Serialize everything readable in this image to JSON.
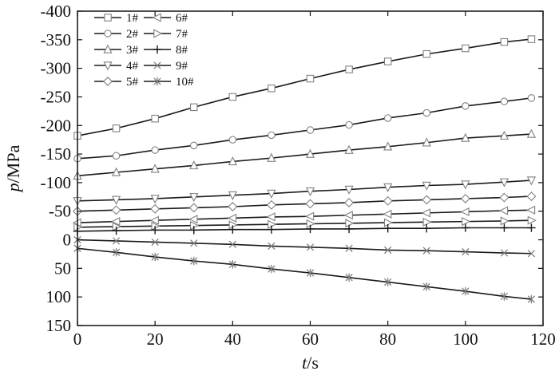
{
  "chart_data": {
    "type": "line",
    "title": "",
    "xlabel": {
      "italic": "t",
      "unit": "/s"
    },
    "ylabel": {
      "italic": "p",
      "unit": "/MPa"
    },
    "xlim": [
      0,
      120
    ],
    "ylim": [
      150,
      -400
    ],
    "y_axis_inverted": true,
    "x_ticks": [
      0,
      20,
      40,
      60,
      80,
      100,
      120
    ],
    "x_tick_labels": [
      "0",
      "20",
      "40",
      "60",
      "80",
      "100",
      "120"
    ],
    "y_ticks": [
      -400,
      -350,
      -300,
      -250,
      -200,
      -150,
      -100,
      -50,
      0,
      50,
      100,
      150
    ],
    "y_tick_labels": [
      "-400",
      "-350",
      "-300",
      "-250",
      "-200",
      "-150",
      "-100",
      "-50",
      "0",
      "50",
      "100",
      "150"
    ],
    "grid": false,
    "legend_position": "top-left",
    "series": [
      {
        "name": "1#",
        "marker": "square",
        "x": [
          0,
          10,
          20,
          30,
          40,
          50,
          60,
          70,
          80,
          90,
          100,
          110,
          117
        ],
        "values": [
          -182,
          -195,
          -212,
          -232,
          -250,
          -265,
          -282,
          -298,
          -312,
          -325,
          -335,
          -346,
          -351
        ]
      },
      {
        "name": "2#",
        "marker": "circle",
        "x": [
          0,
          10,
          20,
          30,
          40,
          50,
          60,
          70,
          80,
          90,
          100,
          110,
          117
        ],
        "values": [
          -142,
          -147,
          -157,
          -165,
          -175,
          -183,
          -192,
          -201,
          -213,
          -222,
          -234,
          -242,
          -248
        ]
      },
      {
        "name": "3#",
        "marker": "triangle-up",
        "x": [
          0,
          10,
          20,
          30,
          40,
          50,
          60,
          70,
          80,
          90,
          100,
          110,
          117
        ],
        "values": [
          -112,
          -118,
          -124,
          -130,
          -137,
          -143,
          -150,
          -157,
          -163,
          -170,
          -178,
          -182,
          -185
        ]
      },
      {
        "name": "4#",
        "marker": "triangle-down",
        "x": [
          0,
          10,
          20,
          30,
          40,
          50,
          60,
          70,
          80,
          90,
          100,
          110,
          117
        ],
        "values": [
          -68,
          -70,
          -72,
          -75,
          -78,
          -81,
          -85,
          -88,
          -92,
          -95,
          -97,
          -101,
          -104
        ]
      },
      {
        "name": "5#",
        "marker": "diamond",
        "x": [
          0,
          10,
          20,
          30,
          40,
          50,
          60,
          70,
          80,
          90,
          100,
          110,
          117
        ],
        "values": [
          -50,
          -52,
          -54,
          -56,
          -58,
          -61,
          -63,
          -65,
          -68,
          -70,
          -72,
          -74,
          -76
        ]
      },
      {
        "name": "6#",
        "marker": "triangle-left",
        "x": [
          0,
          10,
          20,
          30,
          40,
          50,
          60,
          70,
          80,
          90,
          100,
          110,
          117
        ],
        "values": [
          -30,
          -32,
          -34,
          -36,
          -38,
          -40,
          -41,
          -43,
          -45,
          -47,
          -49,
          -51,
          -52
        ]
      },
      {
        "name": "7#",
        "marker": "triangle-right",
        "x": [
          0,
          10,
          20,
          30,
          40,
          50,
          60,
          70,
          80,
          90,
          100,
          110,
          117
        ],
        "values": [
          -22,
          -23,
          -24,
          -25,
          -26,
          -27,
          -28,
          -29,
          -30,
          -31,
          -32,
          -33,
          -34
        ]
      },
      {
        "name": "8#",
        "marker": "plus",
        "x": [
          0,
          10,
          20,
          30,
          40,
          50,
          60,
          70,
          80,
          90,
          100,
          110,
          117
        ],
        "values": [
          -15,
          -16,
          -17,
          -17,
          -18,
          -18,
          -19,
          -19,
          -20,
          -20,
          -21,
          -21,
          -21
        ]
      },
      {
        "name": "9#",
        "marker": "x",
        "x": [
          0,
          10,
          20,
          30,
          40,
          50,
          60,
          70,
          80,
          90,
          100,
          110,
          117
        ],
        "values": [
          0,
          2,
          4,
          6,
          8,
          11,
          13,
          15,
          18,
          19,
          21,
          23,
          24
        ]
      },
      {
        "name": "10#",
        "marker": "asterisk",
        "x": [
          0,
          10,
          20,
          30,
          40,
          50,
          60,
          70,
          80,
          90,
          100,
          110,
          117
        ],
        "values": [
          15,
          22,
          30,
          37,
          43,
          51,
          58,
          66,
          74,
          82,
          90,
          99,
          104
        ]
      }
    ]
  },
  "colors": {
    "line": "#1a1a1a",
    "marker": "#808080",
    "axis": "#111111",
    "background": "#ffffff"
  },
  "legend": {
    "layout": "two-columns",
    "left_column": [
      "1#",
      "2#",
      "3#",
      "4#",
      "5#"
    ],
    "right_column": [
      "6#",
      "7#",
      "8#",
      "9#",
      "10#"
    ]
  }
}
